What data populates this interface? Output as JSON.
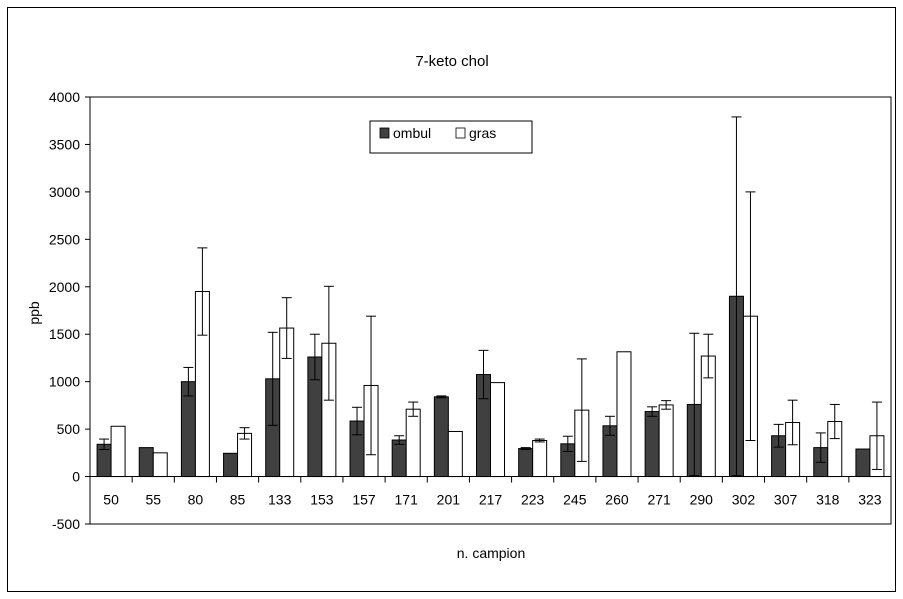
{
  "chart_data": {
    "type": "bar",
    "title": "7-keto chol",
    "xlabel": "n. campion",
    "ylabel": "ppb",
    "ylim": [
      -500,
      4000
    ],
    "yticks": [
      -500,
      0,
      500,
      1000,
      1500,
      2000,
      2500,
      3000,
      3500,
      4000
    ],
    "categories": [
      "50",
      "55",
      "80",
      "85",
      "133",
      "153",
      "157",
      "171",
      "201",
      "217",
      "223",
      "245",
      "260",
      "271",
      "290",
      "302",
      "307",
      "318",
      "323"
    ],
    "series": [
      {
        "name": "ombul",
        "color": "#404040",
        "values": [
          340,
          305,
          1000,
          245,
          1030,
          1260,
          585,
          385,
          840,
          1075,
          295,
          345,
          535,
          685,
          760,
          1900,
          430,
          305,
          290
        ],
        "error": [
          55,
          0,
          150,
          0,
          490,
          240,
          145,
          45,
          10,
          255,
          10,
          80,
          100,
          50,
          750,
          1890,
          120,
          155,
          0
        ]
      },
      {
        "name": "gras",
        "color": "#ffffff",
        "values": [
          530,
          250,
          1950,
          455,
          1565,
          1405,
          960,
          710,
          475,
          990,
          380,
          700,
          1315,
          755,
          1270,
          1690,
          570,
          580,
          430
        ],
        "error": [
          0,
          0,
          460,
          60,
          320,
          600,
          730,
          75,
          0,
          0,
          15,
          540,
          0,
          45,
          230,
          1310,
          235,
          180,
          355
        ]
      }
    ],
    "legend_position": "top-center",
    "grid": false
  }
}
